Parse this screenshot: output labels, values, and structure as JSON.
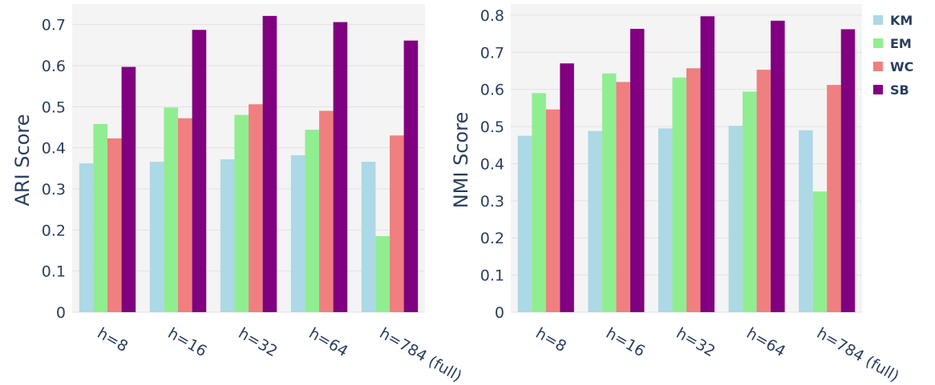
{
  "chart_data": [
    {
      "type": "bar",
      "title": "",
      "xlabel": "",
      "ylabel": "ARI Score",
      "ylim": [
        0,
        0.75
      ],
      "yticks": [
        0,
        0.1,
        0.2,
        0.3,
        0.4,
        0.5,
        0.6,
        0.7
      ],
      "ytick_labels": [
        "0",
        "0.1",
        "0.2",
        "0.3",
        "0.4",
        "0.5",
        "0.6",
        "0.7"
      ],
      "categories": [
        "h=8",
        "h=16",
        "h=32",
        "h=64",
        "h=784 (full)"
      ],
      "grid": true,
      "series": [
        {
          "name": "KM",
          "color": "#add8e6",
          "values": [
            0.362,
            0.366,
            0.372,
            0.382,
            0.366
          ]
        },
        {
          "name": "EM",
          "color": "#90ee90",
          "values": [
            0.458,
            0.498,
            0.48,
            0.444,
            0.185
          ]
        },
        {
          "name": "WC",
          "color": "#f08080",
          "values": [
            0.423,
            0.472,
            0.506,
            0.49,
            0.43
          ]
        },
        {
          "name": "SB",
          "color": "#800080",
          "values": [
            0.597,
            0.687,
            0.721,
            0.706,
            0.661
          ]
        }
      ]
    },
    {
      "type": "bar",
      "title": "",
      "xlabel": "",
      "ylabel": "NMI Score",
      "ylim": [
        0,
        0.83
      ],
      "yticks": [
        0,
        0.1,
        0.2,
        0.3,
        0.4,
        0.5,
        0.6,
        0.7,
        0.8
      ],
      "ytick_labels": [
        "0",
        "0.1",
        "0.2",
        "0.3",
        "0.4",
        "0.5",
        "0.6",
        "0.7",
        "0.8"
      ],
      "categories": [
        "h=8",
        "h=16",
        "h=32",
        "h=64",
        "h=784 (full)"
      ],
      "grid": true,
      "series": [
        {
          "name": "KM",
          "color": "#add8e6",
          "values": [
            0.475,
            0.488,
            0.495,
            0.502,
            0.49
          ]
        },
        {
          "name": "EM",
          "color": "#90ee90",
          "values": [
            0.59,
            0.643,
            0.632,
            0.594,
            0.325
          ]
        },
        {
          "name": "WC",
          "color": "#f08080",
          "values": [
            0.546,
            0.62,
            0.657,
            0.653,
            0.612
          ]
        },
        {
          "name": "SB",
          "color": "#800080",
          "values": [
            0.67,
            0.763,
            0.797,
            0.785,
            0.762
          ]
        }
      ]
    }
  ],
  "legend": {
    "position": "top-right",
    "items": [
      {
        "label": "KM",
        "color": "#add8e6"
      },
      {
        "label": "EM",
        "color": "#90ee90"
      },
      {
        "label": "WC",
        "color": "#f08080"
      },
      {
        "label": "SB",
        "color": "#800080"
      }
    ]
  }
}
